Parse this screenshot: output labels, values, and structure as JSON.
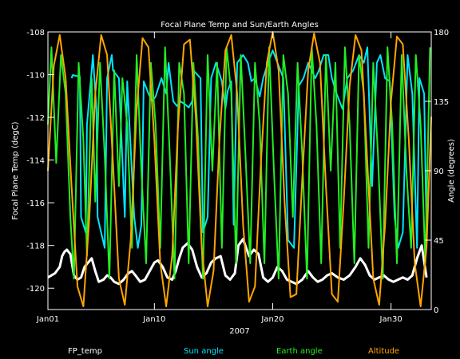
{
  "chart_data": {
    "type": "line",
    "title": "Focal Plane Temp and Sun/Earth Angles",
    "xlabel": "2007",
    "ylabel_left": "Focal Plane Temp (degC)",
    "ylabel_right": "Angle (degrees)",
    "x_ticks": [
      "Jan01",
      "Jan10",
      "Jan20",
      "Jan30"
    ],
    "x_tick_days": [
      1,
      10,
      20,
      30
    ],
    "xlim_days": [
      1,
      33.4
    ],
    "y_left_ticks": [
      "-108",
      "-110",
      "-112",
      "-114",
      "-116",
      "-118",
      "-120"
    ],
    "ylim_left": [
      -121,
      -108
    ],
    "y_right_ticks": [
      "180",
      "135",
      "90",
      "45",
      "0"
    ],
    "ylim_right": [
      0,
      180
    ],
    "grid": false,
    "legend_position": "bottom",
    "series": [
      {
        "name": "FP_temp",
        "axis": "left",
        "color": "#ffffff",
        "x": [
          1.0,
          1.3,
          1.6,
          2.0,
          2.2,
          2.4,
          2.6,
          2.9,
          3.2,
          3.5,
          3.8,
          4.1,
          4.4,
          4.7,
          5.0,
          5.3,
          5.7,
          6.0,
          6.3,
          6.6,
          7.0,
          7.4,
          7.8,
          8.1,
          8.4,
          8.8,
          9.2,
          9.6,
          10.0,
          10.3,
          10.7,
          11.1,
          11.5,
          11.8,
          12.1,
          12.4,
          12.8,
          13.2,
          13.6,
          14.0,
          14.4,
          14.8,
          15.2,
          15.6,
          16.0,
          16.4,
          16.8,
          17.1,
          17.5,
          18.0,
          18.4,
          18.8,
          19.2,
          19.6,
          20.0,
          20.4,
          20.8,
          21.2,
          21.6,
          22.0,
          22.5,
          23.0,
          23.4,
          23.8,
          24.2,
          24.6,
          25.0,
          25.5,
          26.0,
          26.5,
          27.0,
          27.4,
          27.8,
          28.2,
          28.6,
          29.0,
          29.4,
          29.8,
          30.2,
          30.6,
          31.0,
          31.4,
          31.8,
          32.2,
          32.6,
          33.0
        ],
        "y": [
          -119.5,
          -119.4,
          -119.3,
          -119.0,
          -118.5,
          -118.3,
          -118.2,
          -118.4,
          -119.4,
          -119.6,
          -119.5,
          -119.0,
          -118.8,
          -118.6,
          -119.2,
          -119.7,
          -119.6,
          -119.4,
          -119.5,
          -119.7,
          -119.8,
          -119.6,
          -119.3,
          -119.2,
          -119.4,
          -119.7,
          -119.6,
          -119.2,
          -118.8,
          -118.7,
          -119.0,
          -119.5,
          -119.6,
          -119.2,
          -118.6,
          -118.1,
          -117.9,
          -118.2,
          -119.0,
          -119.5,
          -119.3,
          -118.8,
          -118.6,
          -118.5,
          -119.4,
          -119.6,
          -119.3,
          -118.0,
          -117.7,
          -118.5,
          -118.2,
          -118.4,
          -119.5,
          -119.7,
          -119.5,
          -119.0,
          -119.2,
          -119.6,
          -119.7,
          -119.8,
          -119.6,
          -119.2,
          -119.5,
          -119.7,
          -119.6,
          -119.4,
          -119.3,
          -119.5,
          -119.6,
          -119.4,
          -119.0,
          -118.6,
          -118.9,
          -119.4,
          -119.6,
          -119.5,
          -119.4,
          -119.6,
          -119.7,
          -119.6,
          -119.5,
          -119.6,
          -119.4,
          -118.6,
          -118.0,
          -119.5
        ]
      },
      {
        "name": "Sun angle",
        "axis": "right",
        "color": "#00e5ff",
        "x": [
          3.0,
          3.1,
          3.7,
          3.8,
          4.2,
          4.3,
          4.7,
          4.8,
          5.1,
          5.2,
          5.8,
          6.0,
          6.4,
          6.5,
          7.0,
          7.5,
          7.7,
          8.3,
          8.6,
          8.9,
          9.1,
          9.5,
          9.8,
          10.1,
          10.6,
          11.0,
          11.2,
          11.6,
          11.9,
          12.2,
          12.6,
          12.9,
          13.2,
          13.3,
          13.9,
          14.1,
          14.5,
          14.8,
          15.2,
          15.7,
          16.0,
          16.2,
          16.5,
          16.7,
          17.0,
          17.5,
          17.9,
          18.2,
          18.5,
          18.9,
          19.2,
          19.6,
          20.0,
          20.4,
          20.9,
          21.3,
          21.8,
          22.2,
          22.6,
          23.0,
          23.6,
          23.9,
          24.3,
          24.7,
          25.0,
          25.4,
          25.9,
          26.3,
          26.8,
          27.3,
          27.7,
          28.0,
          28.4,
          28.8,
          29.1,
          29.5,
          29.9,
          30.3,
          30.6,
          31.0,
          31.4,
          31.8,
          32.2,
          32.4,
          32.8,
          33.0
        ],
        "y": [
          150,
          152,
          151,
          60,
          50,
          120,
          155,
          165,
          130,
          60,
          40,
          150,
          165,
          155,
          150,
          60,
          148,
          60,
          40,
          55,
          148,
          140,
          135,
          138,
          150,
          140,
          160,
          135,
          132,
          135,
          133,
          131,
          135,
          155,
          150,
          50,
          60,
          150,
          160,
          148,
          130,
          142,
          148,
          55,
          160,
          165,
          160,
          148,
          150,
          138,
          150,
          160,
          168,
          160,
          150,
          45,
          40,
          145,
          150,
          160,
          150,
          155,
          165,
          165,
          150,
          140,
          130,
          150,
          155,
          165,
          160,
          170,
          80,
          160,
          165,
          150,
          148,
          60,
          40,
          50,
          165,
          140,
          40,
          150,
          140,
          50
        ]
      },
      {
        "name": "Earth angle",
        "axis": "right",
        "color": "#22ee22",
        "x": [
          1.0,
          1.3,
          1.7,
          2.1,
          2.5,
          2.9,
          3.2,
          3.6,
          4.0,
          4.3,
          4.7,
          5.0,
          5.4,
          5.8,
          6.2,
          6.6,
          7.0,
          7.3,
          7.7,
          8.1,
          8.5,
          8.9,
          9.3,
          9.7,
          10.1,
          10.5,
          10.9,
          11.3,
          11.7,
          12.1,
          12.5,
          12.9,
          13.3,
          13.7,
          14.1,
          14.5,
          14.9,
          15.3,
          15.7,
          16.1,
          16.5,
          16.9,
          17.3,
          17.7,
          18.1,
          18.5,
          18.9,
          19.3,
          19.7,
          20.1,
          20.5,
          20.9,
          21.3,
          21.7,
          22.1,
          22.5,
          22.9,
          23.3,
          23.7,
          24.1,
          24.5,
          24.9,
          25.3,
          25.7,
          26.1,
          26.5,
          26.9,
          27.3,
          27.7,
          28.1,
          28.5,
          28.9,
          29.3,
          29.7,
          30.1,
          30.5,
          30.9,
          31.3,
          31.7,
          32.1,
          32.5,
          32.9,
          33.3
        ],
        "y": [
          120,
          170,
          95,
          165,
          140,
          60,
          20,
          160,
          110,
          35,
          150,
          70,
          160,
          100,
          20,
          155,
          80,
          150,
          120,
          40,
          165,
          90,
          30,
          160,
          120,
          40,
          170,
          100,
          20,
          160,
          140,
          30,
          160,
          110,
          20,
          165,
          90,
          160,
          40,
          170,
          140,
          30,
          165,
          100,
          30,
          160,
          120,
          30,
          170,
          90,
          20,
          165,
          140,
          60,
          160,
          100,
          20,
          170,
          120,
          30,
          165,
          90,
          160,
          40,
          170,
          120,
          30,
          165,
          140,
          40,
          160,
          100,
          20,
          170,
          120,
          30,
          165,
          90,
          40,
          165,
          120,
          30,
          170
        ]
      },
      {
        "name": "Altitude",
        "axis": "right",
        "color": "#ffa500",
        "x": [
          1.0,
          1.5,
          2.0,
          2.5,
          3.0,
          3.5,
          4.0,
          4.5,
          5.0,
          5.5,
          6.0,
          6.5,
          7.0,
          7.5,
          8.0,
          8.5,
          9.0,
          9.5,
          10.0,
          10.5,
          11.0,
          11.5,
          12.0,
          12.5,
          13.0,
          13.5,
          14.0,
          14.5,
          15.0,
          15.5,
          16.0,
          16.5,
          17.0,
          17.5,
          18.0,
          18.5,
          19.0,
          19.5,
          20.0,
          20.5,
          21.0,
          21.5,
          22.0,
          22.5,
          23.0,
          23.5,
          24.0,
          24.5,
          25.0,
          25.5,
          26.0,
          26.5,
          27.0,
          27.5,
          28.0,
          28.5,
          29.0,
          29.5,
          30.0,
          30.5,
          31.0,
          31.5,
          32.0,
          32.5,
          33.0,
          33.4
        ],
        "y": [
          90,
          158,
          178,
          150,
          80,
          15,
          2,
          60,
          140,
          178,
          165,
          95,
          20,
          3,
          45,
          130,
          176,
          170,
          110,
          30,
          2,
          35,
          120,
          172,
          175,
          125,
          40,
          2,
          25,
          110,
          168,
          178,
          140,
          55,
          5,
          15,
          95,
          160,
          180,
          155,
          70,
          8,
          10,
          85,
          155,
          179,
          160,
          80,
          10,
          5,
          70,
          145,
          178,
          168,
          95,
          20,
          3,
          55,
          135,
          177,
          172,
          110,
          30,
          2,
          40,
          125
        ]
      }
    ]
  },
  "legend": [
    {
      "label": "FP_temp",
      "color": "#ffffff"
    },
    {
      "label": "Sun angle",
      "color": "#00e5ff"
    },
    {
      "label": "Earth angle",
      "color": "#22ee22"
    },
    {
      "label": "Altitude",
      "color": "#ffa500"
    }
  ]
}
